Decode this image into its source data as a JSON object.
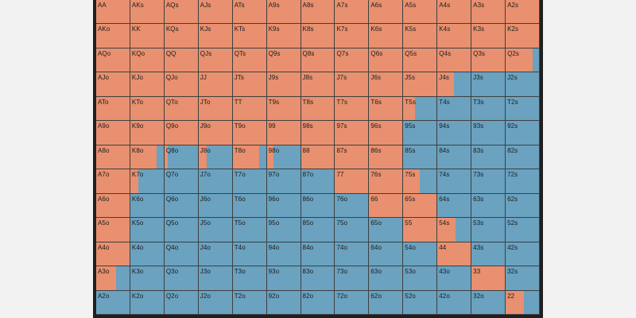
{
  "colors": {
    "raise": "#e8906f",
    "fold": "#6aa2c0",
    "border": "#1f1f1f"
  },
  "hands": [
    [
      "AA",
      "AKs",
      "AQs",
      "AJs",
      "ATs",
      "A9s",
      "A8s",
      "A7s",
      "A6s",
      "A5s",
      "A4s",
      "A3s",
      "A2s"
    ],
    [
      "AKo",
      "KK",
      "KQs",
      "KJs",
      "KTs",
      "K9s",
      "K8s",
      "K7s",
      "K6s",
      "K5s",
      "K4s",
      "K3s",
      "K2s"
    ],
    [
      "AQo",
      "KQo",
      "QQ",
      "QJs",
      "QTs",
      "Q9s",
      "Q8s",
      "Q7s",
      "Q6s",
      "Q5s",
      "Q4s",
      "Q3s",
      "Q2s"
    ],
    [
      "AJo",
      "KJo",
      "QJo",
      "JJ",
      "JTs",
      "J9s",
      "J8s",
      "J7s",
      "J6s",
      "J5s",
      "J4s",
      "J3s",
      "J2s"
    ],
    [
      "ATo",
      "KTo",
      "QTo",
      "JTo",
      "TT",
      "T9s",
      "T8s",
      "T7s",
      "T6s",
      "T5s",
      "T4s",
      "T3s",
      "T2s"
    ],
    [
      "A9o",
      "K9o",
      "Q9o",
      "J9o",
      "T9o",
      "99",
      "98s",
      "97s",
      "96s",
      "95s",
      "94s",
      "93s",
      "92s"
    ],
    [
      "A8o",
      "K8o",
      "Q8o",
      "J8o",
      "T8o",
      "98o",
      "88",
      "87s",
      "86s",
      "85s",
      "84s",
      "83s",
      "82s"
    ],
    [
      "A7o",
      "K7o",
      "Q7o",
      "J7o",
      "T7o",
      "97o",
      "87o",
      "77",
      "76s",
      "75s",
      "74s",
      "73s",
      "72s"
    ],
    [
      "A6o",
      "K6o",
      "Q6o",
      "J6o",
      "T6o",
      "96o",
      "86o",
      "76o",
      "66",
      "65s",
      "64s",
      "63s",
      "62s"
    ],
    [
      "A5o",
      "K5o",
      "Q5o",
      "J5o",
      "T5o",
      "95o",
      "85o",
      "75o",
      "65o",
      "55",
      "54s",
      "53s",
      "52s"
    ],
    [
      "A4o",
      "K4o",
      "Q4o",
      "J4o",
      "T4o",
      "94o",
      "84o",
      "74o",
      "64o",
      "54o",
      "44",
      "43s",
      "42s"
    ],
    [
      "A3o",
      "K3o",
      "Q3o",
      "J3o",
      "T3o",
      "93o",
      "83o",
      "73o",
      "63o",
      "53o",
      "43o",
      "33",
      "32s"
    ],
    [
      "A2o",
      "K2o",
      "Q2o",
      "J2o",
      "T2o",
      "92o",
      "82o",
      "72o",
      "62o",
      "52o",
      "42o",
      "32o",
      "22"
    ]
  ],
  "raise_frequency": [
    [
      1,
      1,
      1,
      1,
      1,
      1,
      1,
      1,
      1,
      1,
      1,
      1,
      1
    ],
    [
      1,
      1,
      1,
      1,
      1,
      1,
      1,
      1,
      1,
      1,
      1,
      1,
      1
    ],
    [
      1,
      1,
      1,
      1,
      1,
      1,
      1,
      1,
      1,
      1,
      1,
      1,
      0.8
    ],
    [
      1,
      1,
      1,
      1,
      1,
      1,
      1,
      1,
      1,
      1,
      0.5,
      0,
      0
    ],
    [
      1,
      1,
      1,
      1,
      1,
      1,
      1,
      1,
      1,
      0.35,
      0,
      0,
      0
    ],
    [
      1,
      1,
      1,
      1,
      1,
      1,
      1,
      1,
      1,
      0,
      0,
      0,
      0
    ],
    [
      1,
      0.8,
      0.1,
      0.25,
      0.8,
      0.2,
      1,
      1,
      1,
      0,
      0,
      0,
      0
    ],
    [
      1,
      0.25,
      0,
      0,
      0,
      0,
      0,
      1,
      1,
      0.5,
      0,
      0,
      0
    ],
    [
      1,
      0,
      0,
      0,
      0,
      0,
      0,
      0,
      1,
      1,
      0,
      0,
      0
    ],
    [
      1,
      0,
      0,
      0,
      0,
      0,
      0,
      0,
      0,
      1,
      0.55,
      0,
      0
    ],
    [
      1,
      0,
      0,
      0,
      0,
      0,
      0,
      0,
      0,
      0,
      1,
      0,
      0
    ],
    [
      0.6,
      0,
      0,
      0,
      0,
      0,
      0,
      0,
      0,
      0,
      0,
      1,
      0
    ],
    [
      0,
      0,
      0,
      0,
      0,
      0,
      0,
      0,
      0,
      0,
      0,
      0,
      0.55
    ]
  ]
}
